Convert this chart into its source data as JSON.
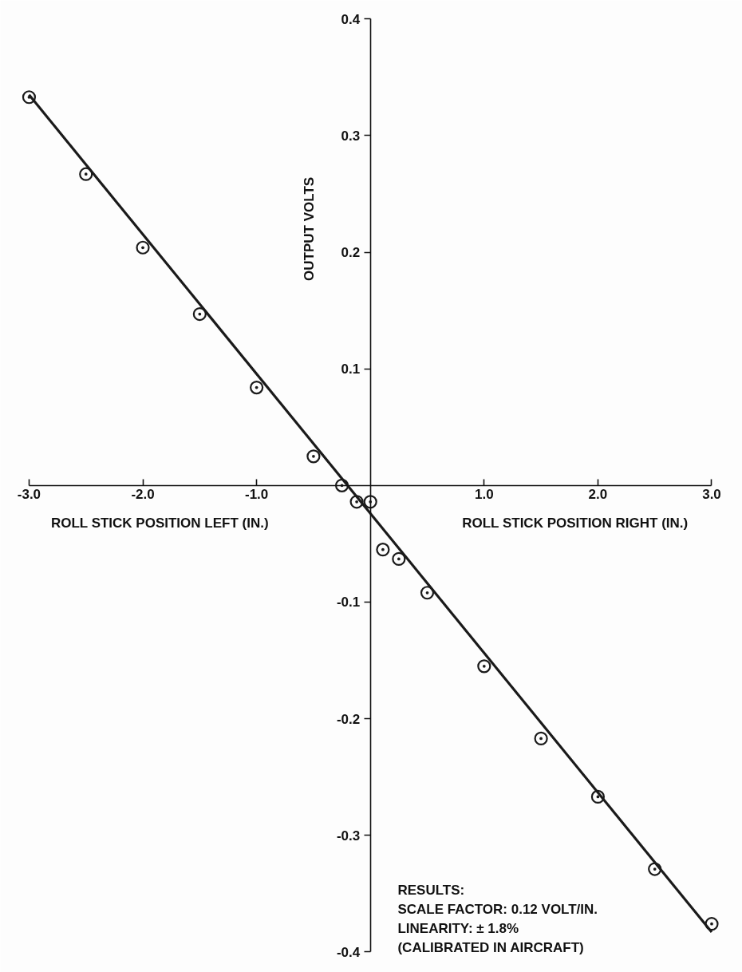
{
  "chart_data": {
    "type": "scatter",
    "xlabel": "ROLL STICK POSITION LEFT (IN.)",
    "ylabel": "OUTPUT VOLTS",
    "annotations": [
      "ROLL STICK POSITION RIGHT (IN.)",
      "RESULTS:",
      "SCALE FACTOR: 0.12 VOLT/IN.",
      "LINEARITY: ± 1.8%",
      "(CALIBRATED IN AIRCRAFT)"
    ],
    "series": [
      {
        "color": "#1a1a1a",
        "marker": "circle",
        "x": [
          -3.0,
          -2.5,
          -2.0,
          -1.5,
          -1.0,
          -0.5,
          -0.25,
          -0.12,
          0.0,
          0.11,
          0.25,
          0.5,
          1.0,
          1.5,
          2.0,
          2.5,
          3.0
        ],
        "values": [
          0.333,
          0.267,
          0.204,
          0.147,
          0.084,
          0.025,
          0.0,
          -0.014,
          -0.014,
          -0.055,
          -0.063,
          -0.092,
          -0.155,
          -0.217,
          -0.267,
          -0.329,
          -0.376
        ]
      },
      {
        "type": "line",
        "color": "#1a1a1a",
        "marker": "none",
        "x": [
          -3.0,
          3.0
        ],
        "values": [
          0.335,
          -0.383
        ]
      }
    ],
    "xlim": [
      -3.0,
      3.0
    ],
    "ylim": [
      -0.4,
      0.4
    ],
    "xticks": [
      {
        "value": -3,
        "label": "-3.0"
      },
      {
        "value": -2,
        "label": "-2.0"
      },
      {
        "value": -1,
        "label": "-1.0"
      },
      {
        "value": 1,
        "label": "1.0"
      },
      {
        "value": 2,
        "label": "2.0"
      },
      {
        "value": 3,
        "label": "3.0"
      }
    ],
    "yticks": [
      0.4,
      0.3,
      0.2,
      0.1,
      -0.1,
      -0.2,
      -0.3,
      -0.4
    ],
    "grid": false
  }
}
